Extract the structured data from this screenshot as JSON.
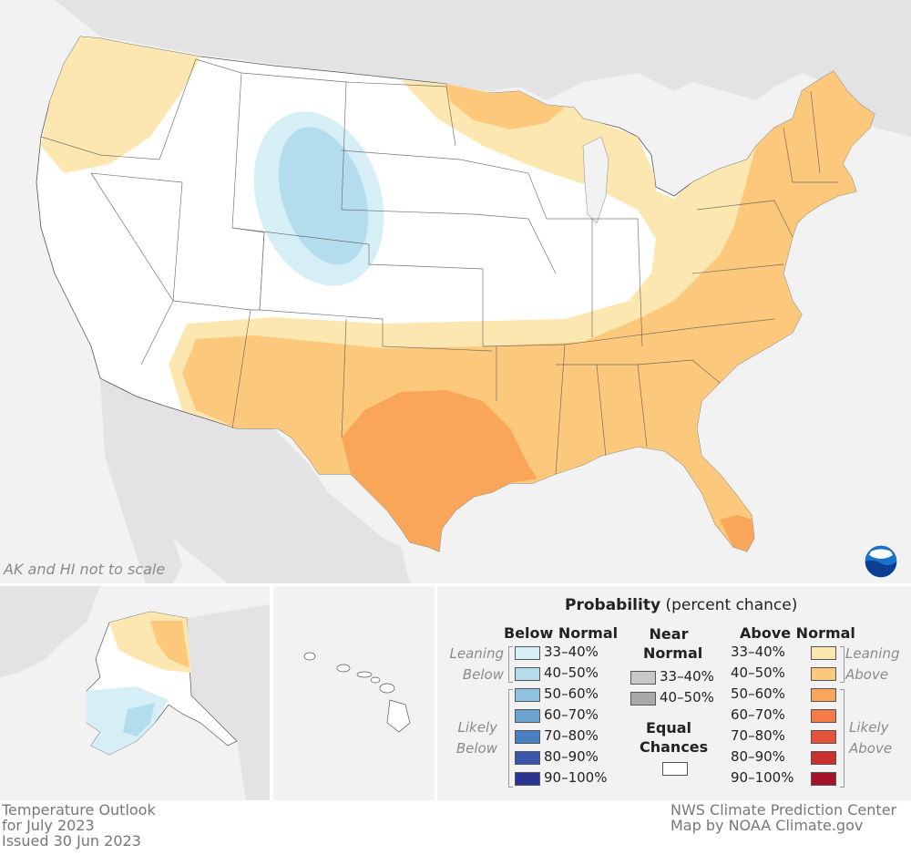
{
  "map": {
    "note": "AK and HI not to scale"
  },
  "legend": {
    "title": "Probability",
    "title_suffix": "(percent chance)",
    "below_heading": "Below Normal",
    "near_heading_1": "Near",
    "near_heading_2": "Normal",
    "above_heading": "Above Normal",
    "leaning_below_1": "Leaning",
    "leaning_below_2": "Below",
    "likely_below_1": "Likely",
    "likely_below_2": "Below",
    "leaning_above_1": "Leaning",
    "leaning_above_2": "Above",
    "likely_above_1": "Likely",
    "likely_above_2": "Above",
    "equal_1": "Equal",
    "equal_2": "Chances",
    "below": [
      {
        "label": "33–40%",
        "color": "#d6eef6"
      },
      {
        "label": "40–50%",
        "color": "#b3dcec"
      },
      {
        "label": "50–60%",
        "color": "#8fc3df"
      },
      {
        "label": "60–70%",
        "color": "#6aa3d2"
      },
      {
        "label": "70–80%",
        "color": "#4a7fc3"
      },
      {
        "label": "80–90%",
        "color": "#3a56a8"
      },
      {
        "label": "90–100%",
        "color": "#2a3392"
      }
    ],
    "near": [
      {
        "label": "33–40%",
        "color": "#c8c8c8"
      },
      {
        "label": "40–50%",
        "color": "#a9a9a9"
      }
    ],
    "above": [
      {
        "label": "33–40%",
        "color": "#fde7b0"
      },
      {
        "label": "40–50%",
        "color": "#fcc87c"
      },
      {
        "label": "50–60%",
        "color": "#f9a55a"
      },
      {
        "label": "60–70%",
        "color": "#f47b47"
      },
      {
        "label": "70–80%",
        "color": "#e4523a"
      },
      {
        "label": "80–90%",
        "color": "#c9302e"
      },
      {
        "label": "90–100%",
        "color": "#a6112a"
      }
    ],
    "equal_color": "#ffffff"
  },
  "footer": {
    "left_1": "Temperature Outlook",
    "left_2": "for July 2023",
    "left_3": "Issued 30 Jun 2023",
    "right_1": "NWS Climate Prediction Center",
    "right_2": "Map by NOAA Climate.gov"
  },
  "logo": {
    "text": "NOAA"
  },
  "colors": {
    "background_land": "#e6e6e6",
    "water": "#f2f2f2",
    "equal_chances": "#ffffff"
  }
}
